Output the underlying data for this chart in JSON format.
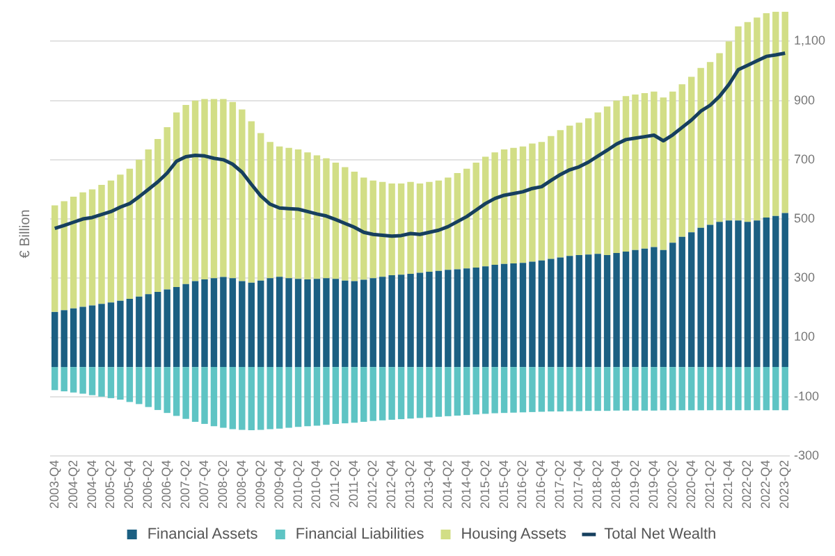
{
  "chart_data": {
    "type": "bar",
    "stacked": true,
    "ylabel": "€ Billion",
    "grid": "y",
    "legend": "bottom",
    "marker": "none",
    "categories": [
      "2003-Q4",
      null,
      "2004-Q2",
      null,
      "2004-Q4",
      null,
      "2005-Q2",
      null,
      "2005-Q4",
      null,
      "2006-Q2",
      null,
      "2006-Q4",
      null,
      "2007-Q2",
      null,
      "2007-Q4",
      null,
      "2008-Q2",
      null,
      "2008-Q4",
      null,
      "2009-Q2",
      null,
      "2009-Q4",
      null,
      "2010-Q2",
      null,
      "2010-Q4",
      null,
      "2011-Q2",
      null,
      "2011-Q4",
      null,
      "2012-Q2",
      null,
      "2012-Q4",
      null,
      "2013-Q2",
      null,
      "2013-Q4",
      null,
      "2014-Q2",
      null,
      "2014-Q4",
      null,
      "2015-Q2",
      null,
      "2015-Q4",
      null,
      "2016-Q2",
      null,
      "2016-Q4",
      null,
      "2017-Q2",
      null,
      "2017-Q4",
      null,
      "2018-Q2",
      null,
      "2018-Q4",
      null,
      "2019-Q2",
      null,
      "2019-Q4",
      null,
      "2020-Q2",
      null,
      "2020-Q4",
      null,
      "2021-Q2",
      null,
      "2021-Q4",
      null,
      "2022-Q2",
      null,
      "2022-Q4",
      null,
      "2023-Q2"
    ],
    "ylim": [
      -300,
      1200
    ],
    "yticks": [
      -300,
      -100,
      100,
      300,
      500,
      700,
      900,
      {
        "value": 1100,
        "label": "1,100"
      }
    ],
    "series": [
      {
        "name": "Financial Assets",
        "color": "#1b5f82",
        "values": [
          186,
          192,
          198,
          203,
          208,
          213,
          218,
          224,
          230,
          238,
          246,
          254,
          262,
          270,
          280,
          290,
          296,
          300,
          304,
          300,
          290,
          285,
          292,
          300,
          305,
          300,
          298,
          296,
          298,
          300,
          298,
          292,
          290,
          295,
          300,
          305,
          310,
          312,
          315,
          318,
          322,
          325,
          328,
          330,
          333,
          336,
          340,
          345,
          348,
          350,
          352,
          356,
          360,
          365,
          370,
          375,
          378,
          380,
          382,
          378,
          385,
          390,
          395,
          400,
          405,
          395,
          420,
          440,
          455,
          470,
          480,
          490,
          495,
          495,
          490,
          495,
          505,
          510,
          520
        ]
      },
      {
        "name": "Financial Liabilities",
        "color": "#5ec4c4",
        "values": [
          -78,
          -82,
          -86,
          -90,
          -95,
          -100,
          -105,
          -110,
          -118,
          -125,
          -135,
          -145,
          -155,
          -165,
          -175,
          -185,
          -192,
          -200,
          -205,
          -210,
          -212,
          -213,
          -212,
          -210,
          -208,
          -205,
          -202,
          -200,
          -198,
          -195,
          -192,
          -190,
          -188,
          -185,
          -182,
          -180,
          -178,
          -176,
          -174,
          -172,
          -170,
          -168,
          -166,
          -164,
          -162,
          -160,
          -158,
          -156,
          -155,
          -154,
          -153,
          -152,
          -151,
          -150,
          -150,
          -149,
          -149,
          -148,
          -148,
          -148,
          -147,
          -147,
          -147,
          -147,
          -147,
          -146,
          -146,
          -146,
          -146,
          -146,
          -146,
          -146,
          -146,
          -146,
          -146,
          -146,
          -146,
          -146,
          -146
        ]
      },
      {
        "name": "Housing Assets",
        "color": "#d2de86",
        "values": [
          360,
          368,
          377,
          387,
          392,
          402,
          412,
          426,
          440,
          462,
          489,
          516,
          548,
          590,
          605,
          610,
          609,
          605,
          601,
          595,
          580,
          545,
          498,
          460,
          440,
          440,
          437,
          429,
          417,
          405,
          392,
          383,
          370,
          345,
          330,
          320,
          310,
          308,
          310,
          302,
          303,
          305,
          312,
          325,
          337,
          354,
          370,
          380,
          387,
          390,
          393,
          399,
          400,
          415,
          430,
          440,
          447,
          460,
          478,
          502,
          515,
          525,
          525,
          525,
          525,
          515,
          510,
          515,
          525,
          540,
          550,
          570,
          605,
          655,
          675,
          685,
          690,
          690,
          680
        ]
      },
      {
        "name": "Total Net Wealth",
        "type": "line",
        "color": "#163f5e",
        "values": [
          468,
          478,
          489,
          500,
          505,
          515,
          525,
          540,
          552,
          575,
          600,
          625,
          655,
          695,
          710,
          715,
          713,
          705,
          700,
          685,
          658,
          617,
          578,
          550,
          537,
          535,
          533,
          525,
          517,
          510,
          498,
          485,
          472,
          455,
          448,
          445,
          442,
          444,
          451,
          448,
          455,
          462,
          474,
          491,
          508,
          530,
          552,
          569,
          580,
          586,
          592,
          603,
          609,
          630,
          650,
          666,
          676,
          692,
          712,
          732,
          753,
          768,
          773,
          778,
          783,
          764,
          784,
          809,
          834,
          864,
          884,
          914,
          954,
          1004,
          1019,
          1034,
          1049,
          1054,
          1060
        ]
      }
    ]
  }
}
